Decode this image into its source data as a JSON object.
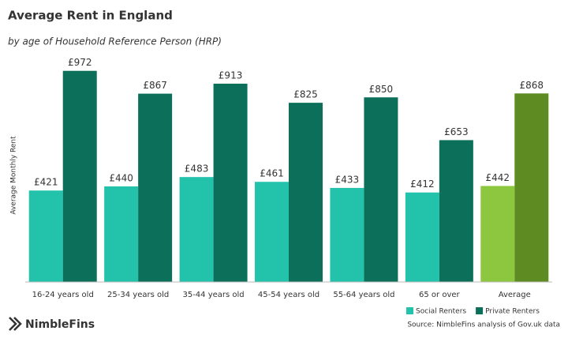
{
  "chart_data": {
    "type": "bar",
    "title": "Average Rent in England",
    "subtitle": "by age of Household Reference Person (HRP)",
    "y_label": "Average Monthly Rent",
    "categories": [
      "16-24 years old",
      "25-34 years old",
      "35-44 years old",
      "45-54 years old",
      "55-64 years old",
      "65 or over",
      "Average"
    ],
    "series": [
      {
        "name": "Social Renters",
        "color": "#22c2ab",
        "colors": [
          "#22c2ab",
          "#22c2ab",
          "#22c2ab",
          "#22c2ab",
          "#22c2ab",
          "#22c2ab",
          "#8dc63f"
        ],
        "values": [
          421,
          440,
          483,
          461,
          433,
          412,
          442
        ],
        "value_labels": [
          "£421",
          "£440",
          "£483",
          "£461",
          "£433",
          "£412",
          "£442"
        ]
      },
      {
        "name": "Private Renters",
        "color": "#0b6f5a",
        "colors": [
          "#0b6f5a",
          "#0b6f5a",
          "#0b6f5a",
          "#0b6f5a",
          "#0b6f5a",
          "#0b6f5a",
          "#5f8c22"
        ],
        "values": [
          972,
          867,
          913,
          825,
          850,
          653,
          868
        ],
        "value_labels": [
          "£972",
          "£867",
          "£913",
          "£825",
          "£850",
          "£653",
          "£868"
        ]
      }
    ],
    "ylim": [
      0,
      1000
    ],
    "source": "Source: NimbleFins analysis of Gov.uk data",
    "brand": "NimbleFins"
  }
}
